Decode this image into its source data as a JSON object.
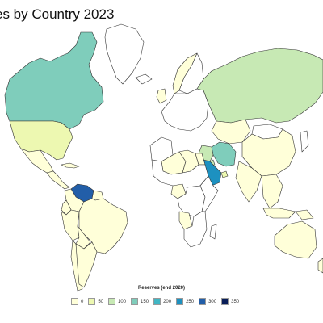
{
  "title": "es by Country 2023",
  "legend": {
    "title": "Reserves (end 2020)",
    "items": [
      {
        "label": "0",
        "color": "#ffffd9"
      },
      {
        "label": "50",
        "color": "#edf8b1"
      },
      {
        "label": "100",
        "color": "#c7e9b4"
      },
      {
        "label": "150",
        "color": "#7fcdbb"
      },
      {
        "label": "200",
        "color": "#41b6c4"
      },
      {
        "label": "250",
        "color": "#1d91c0"
      },
      {
        "label": "300",
        "color": "#225ea8"
      },
      {
        "label": "350",
        "color": "#081d58"
      }
    ]
  },
  "colors": {
    "no_data": "#ffffff",
    "border": "#333333"
  },
  "regions": [
    {
      "name": "canada",
      "value": 168
    },
    {
      "name": "greenland",
      "value": null
    },
    {
      "name": "usa",
      "value": 69
    },
    {
      "name": "mexico",
      "value": 6
    },
    {
      "name": "central-america",
      "value": 0
    },
    {
      "name": "cuba",
      "value": 0
    },
    {
      "name": "venezuela",
      "value": 304
    },
    {
      "name": "colombia",
      "value": 2
    },
    {
      "name": "guyana",
      "value": 0
    },
    {
      "name": "brazil",
      "value": 13
    },
    {
      "name": "ecuador",
      "value": 8
    },
    {
      "name": "peru",
      "value": 1
    },
    {
      "name": "bolivia",
      "value": 0
    },
    {
      "name": "argentina",
      "value": 2
    },
    {
      "name": "chile",
      "value": 0
    },
    {
      "name": "iceland",
      "value": null
    },
    {
      "name": "uk",
      "value": 2
    },
    {
      "name": "norway",
      "value": 8
    },
    {
      "name": "sweden-finland",
      "value": null
    },
    {
      "name": "europe",
      "value": null
    },
    {
      "name": "russia",
      "value": 108
    },
    {
      "name": "kazakhstan",
      "value": 30
    },
    {
      "name": "mongolia",
      "value": null
    },
    {
      "name": "china",
      "value": 26
    },
    {
      "name": "iran",
      "value": 158
    },
    {
      "name": "iraq",
      "value": 145
    },
    {
      "name": "kuwait",
      "value": 102
    },
    {
      "name": "uae",
      "value": 98
    },
    {
      "name": "saudi-arabia",
      "value": 262
    },
    {
      "name": "india",
      "value": 5
    },
    {
      "name": "southeast-asia",
      "value": 4
    },
    {
      "name": "japan",
      "value": null
    },
    {
      "name": "north-africa",
      "value": null
    },
    {
      "name": "libya",
      "value": 48
    },
    {
      "name": "algeria",
      "value": 12
    },
    {
      "name": "egypt",
      "value": 3
    },
    {
      "name": "sahel",
      "value": null
    },
    {
      "name": "nigeria",
      "value": 37
    },
    {
      "name": "angola",
      "value": 8
    },
    {
      "name": "central-africa",
      "value": null
    },
    {
      "name": "east-africa",
      "value": null
    },
    {
      "name": "southern-africa",
      "value": null
    },
    {
      "name": "madagascar",
      "value": null
    },
    {
      "name": "indonesia",
      "value": 2
    },
    {
      "name": "papua-new-guinea",
      "value": 0
    },
    {
      "name": "australia",
      "value": 2
    },
    {
      "name": "new-zealand",
      "value": 0
    }
  ]
}
